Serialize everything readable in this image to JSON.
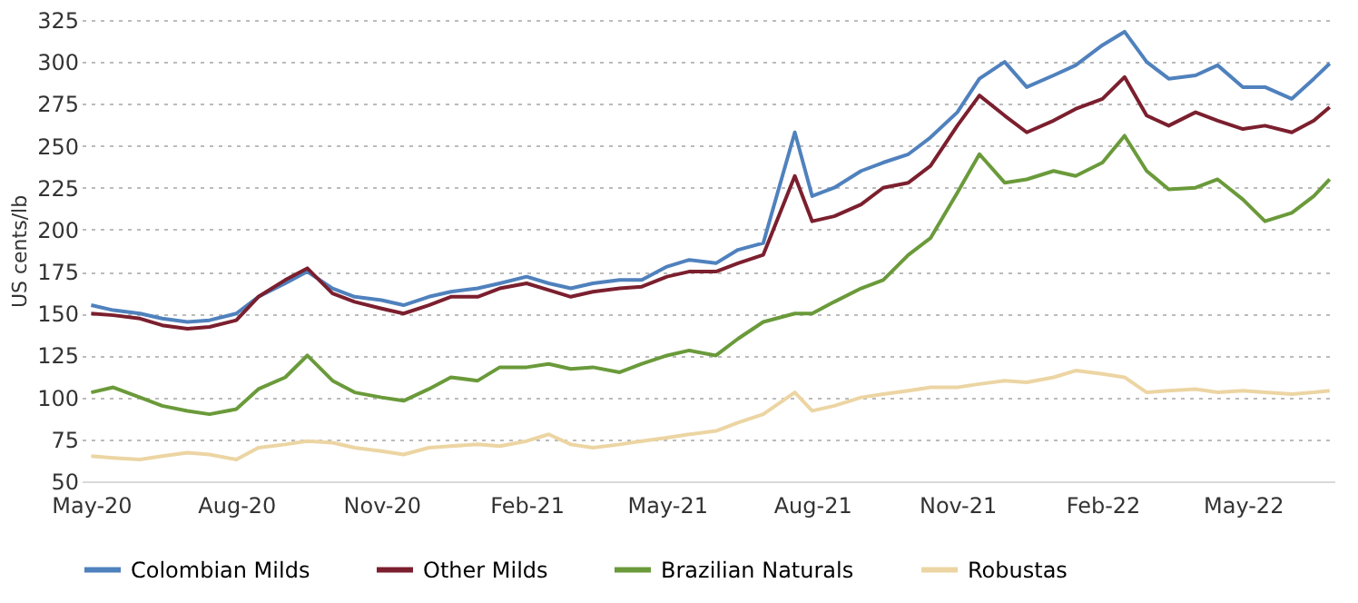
{
  "chart_data": {
    "type": "line",
    "ylabel": "US cents/lb",
    "x": [
      "2020-05-01",
      "2020-05-15",
      "2020-06-01",
      "2020-06-15",
      "2020-07-01",
      "2020-07-15",
      "2020-08-01",
      "2020-08-15",
      "2020-09-01",
      "2020-09-15",
      "2020-10-01",
      "2020-10-15",
      "2020-11-01",
      "2020-11-15",
      "2020-12-01",
      "2020-12-15",
      "2021-01-01",
      "2021-01-15",
      "2021-02-01",
      "2021-02-15",
      "2021-03-01",
      "2021-03-15",
      "2021-04-01",
      "2021-04-15",
      "2021-05-01",
      "2021-05-15",
      "2021-06-01",
      "2021-06-15",
      "2021-07-01",
      "2021-07-21",
      "2021-08-01",
      "2021-08-15",
      "2021-09-01",
      "2021-09-15",
      "2021-10-01",
      "2021-10-15",
      "2021-11-01",
      "2021-11-15",
      "2021-12-01",
      "2021-12-15",
      "2022-01-01",
      "2022-01-15",
      "2022-02-01",
      "2022-02-15",
      "2022-03-01",
      "2022-03-15",
      "2022-04-01",
      "2022-04-15",
      "2022-05-01",
      "2022-05-15",
      "2022-06-01",
      "2022-06-15",
      "2022-06-25"
    ],
    "series": [
      {
        "name": "Colombian Milds",
        "color": "#4f81bd",
        "values": [
          155,
          152,
          150,
          147,
          145,
          146,
          150,
          160,
          168,
          175,
          165,
          160,
          158,
          155,
          160,
          163,
          165,
          168,
          172,
          168,
          165,
          168,
          170,
          170,
          178,
          182,
          180,
          188,
          192,
          258,
          220,
          225,
          235,
          240,
          245,
          255,
          270,
          290,
          300,
          285,
          292,
          298,
          310,
          318,
          300,
          290,
          292,
          298,
          285,
          285,
          278,
          290,
          299
        ]
      },
      {
        "name": "Other Milds",
        "color": "#7b1f2e",
        "values": [
          150,
          149,
          147,
          143,
          141,
          142,
          146,
          160,
          170,
          177,
          162,
          157,
          153,
          150,
          155,
          160,
          160,
          165,
          168,
          164,
          160,
          163,
          165,
          166,
          172,
          175,
          175,
          180,
          185,
          232,
          205,
          208,
          215,
          225,
          228,
          238,
          262,
          280,
          268,
          258,
          265,
          272,
          278,
          291,
          268,
          262,
          270,
          265,
          260,
          262,
          258,
          265,
          273
        ]
      },
      {
        "name": "Brazilian Naturals",
        "color": "#6a9a3a",
        "values": [
          103,
          106,
          100,
          95,
          92,
          90,
          93,
          105,
          112,
          125,
          110,
          103,
          100,
          98,
          105,
          112,
          110,
          118,
          118,
          120,
          117,
          118,
          115,
          120,
          125,
          128,
          125,
          135,
          145,
          150,
          150,
          157,
          165,
          170,
          185,
          195,
          222,
          245,
          228,
          230,
          235,
          232,
          240,
          256,
          235,
          224,
          225,
          230,
          218,
          205,
          210,
          220,
          230
        ]
      },
      {
        "name": "Robustas",
        "color": "#ecd5a3",
        "values": [
          65,
          64,
          63,
          65,
          67,
          66,
          63,
          70,
          72,
          74,
          73,
          70,
          68,
          66,
          70,
          71,
          72,
          71,
          74,
          78,
          72,
          70,
          72,
          74,
          76,
          78,
          80,
          85,
          90,
          103,
          92,
          95,
          100,
          102,
          104,
          106,
          106,
          108,
          110,
          109,
          112,
          116,
          114,
          112,
          103,
          104,
          105,
          103,
          104,
          103,
          102,
          103,
          104
        ]
      }
    ],
    "ylim": [
      50,
      325
    ],
    "yticks": [
      50,
      75,
      100,
      125,
      150,
      175,
      200,
      225,
      250,
      275,
      300,
      325
    ],
    "xlim": [
      "2020-04-25",
      "2022-06-28"
    ],
    "xticks": [
      {
        "value": "2020-05-01",
        "label": "May-20"
      },
      {
        "value": "2020-08-01",
        "label": "Aug-20"
      },
      {
        "value": "2020-11-01",
        "label": "Nov-20"
      },
      {
        "value": "2021-02-01",
        "label": "Feb-21"
      },
      {
        "value": "2021-05-01",
        "label": "May-21"
      },
      {
        "value": "2021-08-01",
        "label": "Aug-21"
      },
      {
        "value": "2021-11-01",
        "label": "Nov-21"
      },
      {
        "value": "2022-02-01",
        "label": "Feb-22"
      },
      {
        "value": "2022-05-01",
        "label": "May-22"
      }
    ],
    "grid": "y",
    "legend": "bottom",
    "line_style": "solid",
    "marker": "none"
  }
}
